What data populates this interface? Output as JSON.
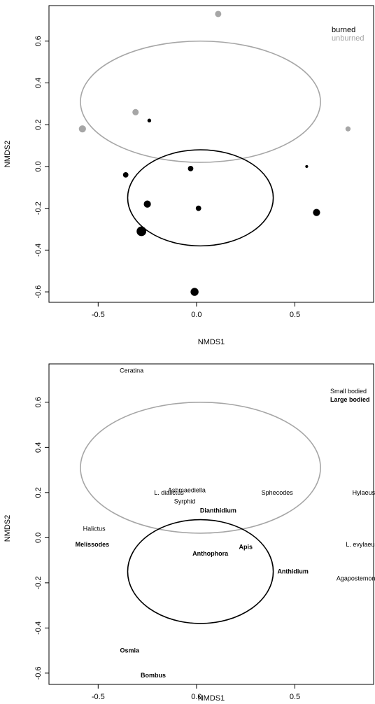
{
  "chart_data": [
    {
      "type": "scatter",
      "xlabel": "NMDS1",
      "ylabel": "NMDS2",
      "xlim": [
        -0.75,
        0.9
      ],
      "ylim": [
        -0.65,
        0.77
      ],
      "xticks": [
        "-0.5",
        "0.0",
        "0.5"
      ],
      "yticks": [
        "-0.6",
        "-0.4",
        "-0.2",
        "0.0",
        "0.2",
        "0.4",
        "0.6"
      ],
      "legend": {
        "position": "top-right",
        "entries": [
          {
            "label": "burned",
            "color": "#000000"
          },
          {
            "label": "unburned",
            "color": "#a6a6a6"
          }
        ]
      },
      "series": [
        {
          "group": "burned",
          "color": "#000000",
          "points": [
            {
              "x": -0.24,
              "y": 0.22,
              "size": 1
            },
            {
              "x": -0.36,
              "y": -0.04,
              "size": 2
            },
            {
              "x": -0.03,
              "y": -0.01,
              "size": 2
            },
            {
              "x": 0.56,
              "y": 0.0,
              "size": 0.5
            },
            {
              "x": -0.25,
              "y": -0.18,
              "size": 3
            },
            {
              "x": 0.01,
              "y": -0.2,
              "size": 2
            },
            {
              "x": 0.61,
              "y": -0.22,
              "size": 3
            },
            {
              "x": -0.28,
              "y": -0.31,
              "size": 4.5
            },
            {
              "x": -0.01,
              "y": -0.6,
              "size": 3.5
            }
          ]
        },
        {
          "group": "unburned",
          "color": "#a6a6a6",
          "points": [
            {
              "x": 0.11,
              "y": 0.73,
              "size": 2.5
            },
            {
              "x": -0.31,
              "y": 0.26,
              "size": 2.5
            },
            {
              "x": -0.58,
              "y": 0.18,
              "size": 3
            },
            {
              "x": 0.77,
              "y": 0.18,
              "size": 1.8
            }
          ]
        }
      ],
      "ellipses": [
        {
          "group": "unburned",
          "color": "#a6a6a6",
          "cx": 0.02,
          "cy": 0.31,
          "rx": 0.61,
          "ry": 0.29
        },
        {
          "group": "burned",
          "color": "#000000",
          "cx": 0.02,
          "cy": -0.15,
          "rx": 0.37,
          "ry": 0.23
        }
      ]
    },
    {
      "type": "scatter",
      "xlabel": "NMDS1",
      "ylabel": "NMDS2",
      "xlim": [
        -0.75,
        0.9
      ],
      "ylim": [
        -0.65,
        0.77
      ],
      "xticks": [
        "-0.5",
        "0.0",
        "0.5"
      ],
      "yticks": [
        "-0.6",
        "-0.4",
        "-0.2",
        "0.0",
        "0.2",
        "0.4",
        "0.6"
      ],
      "legend": {
        "position": "top-right",
        "entries": [
          {
            "label": "Small bodied",
            "bold": false
          },
          {
            "label": "Large bodied",
            "bold": true
          }
        ]
      },
      "labels": [
        {
          "text": "Ceratina",
          "x": -0.33,
          "y": 0.74,
          "bold": false
        },
        {
          "text": "L. dialictus",
          "x": -0.14,
          "y": 0.2,
          "bold": false
        },
        {
          "text": "Ashmaediella",
          "x": -0.05,
          "y": 0.21,
          "bold": false
        },
        {
          "text": "Syrphid",
          "x": -0.06,
          "y": 0.16,
          "bold": false
        },
        {
          "text": "Sphecodes",
          "x": 0.41,
          "y": 0.2,
          "bold": false
        },
        {
          "text": "Hylaeus",
          "x": 0.85,
          "y": 0.2,
          "bold": false
        },
        {
          "text": "Dianthidium",
          "x": 0.11,
          "y": 0.12,
          "bold": true
        },
        {
          "text": "Halictus",
          "x": -0.52,
          "y": 0.04,
          "bold": false
        },
        {
          "text": "Melissodes",
          "x": -0.53,
          "y": -0.03,
          "bold": true
        },
        {
          "text": "L. evylaeus",
          "x": 0.84,
          "y": -0.03,
          "bold": false
        },
        {
          "text": "Apis",
          "x": 0.25,
          "y": -0.04,
          "bold": true
        },
        {
          "text": "Anthophora",
          "x": 0.07,
          "y": -0.07,
          "bold": true
        },
        {
          "text": "Anthidium",
          "x": 0.49,
          "y": -0.15,
          "bold": true
        },
        {
          "text": "Agapostemon",
          "x": 0.81,
          "y": -0.18,
          "bold": false
        },
        {
          "text": "Osmia",
          "x": -0.34,
          "y": -0.5,
          "bold": true
        },
        {
          "text": "Bombus",
          "x": -0.22,
          "y": -0.61,
          "bold": true
        }
      ],
      "ellipses": [
        {
          "group": "unburned",
          "color": "#a6a6a6",
          "cx": 0.02,
          "cy": 0.31,
          "rx": 0.61,
          "ry": 0.29
        },
        {
          "group": "burned",
          "color": "#000000",
          "cx": 0.02,
          "cy": -0.15,
          "rx": 0.37,
          "ry": 0.23
        }
      ]
    }
  ]
}
